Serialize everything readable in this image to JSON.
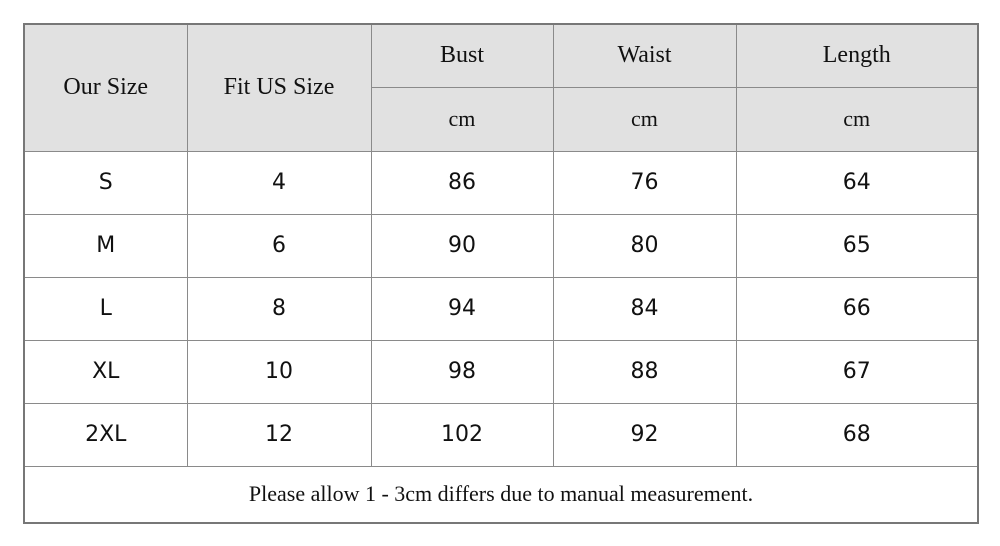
{
  "table": {
    "header": [
      "Our Size",
      "Fit US Size",
      "Bust",
      "Waist",
      "Length"
    ],
    "units": [
      "cm",
      "cm",
      "cm"
    ],
    "rows": [
      [
        "S",
        4,
        86,
        76,
        64
      ],
      [
        "M",
        6,
        90,
        80,
        65
      ],
      [
        "L",
        8,
        94,
        84,
        66
      ],
      [
        "XL",
        10,
        98,
        88,
        67
      ],
      [
        "2XL",
        12,
        102,
        92,
        68
      ]
    ],
    "note": "Please allow 1 - 3cm differs due to manual measurement."
  }
}
